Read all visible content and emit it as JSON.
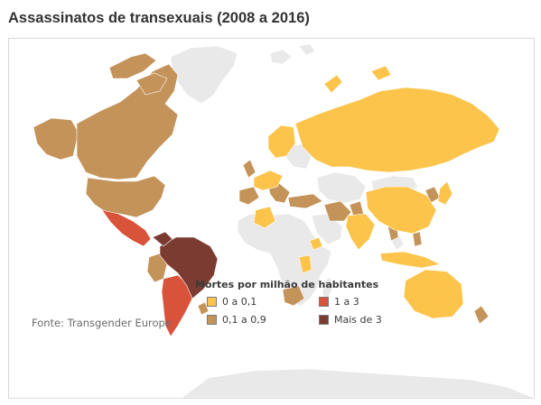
{
  "title": "Assassinatos de transexuais (2008 a 2016)",
  "source": "Fonte: Transgender Europe",
  "legend": {
    "title": "Mortes por milhão de habitantes",
    "items": [
      {
        "label": "0 a 0,1",
        "color": "#fcc44b"
      },
      {
        "label": "0,1 a 0,9",
        "color": "#c4935a"
      },
      {
        "label": "1 a 3",
        "color": "#d9533b"
      },
      {
        "label": "Mais de 3",
        "color": "#7c3b31"
      }
    ]
  },
  "colors": {
    "no_data": "#e9e9e9",
    "border": "#ffffff"
  }
}
